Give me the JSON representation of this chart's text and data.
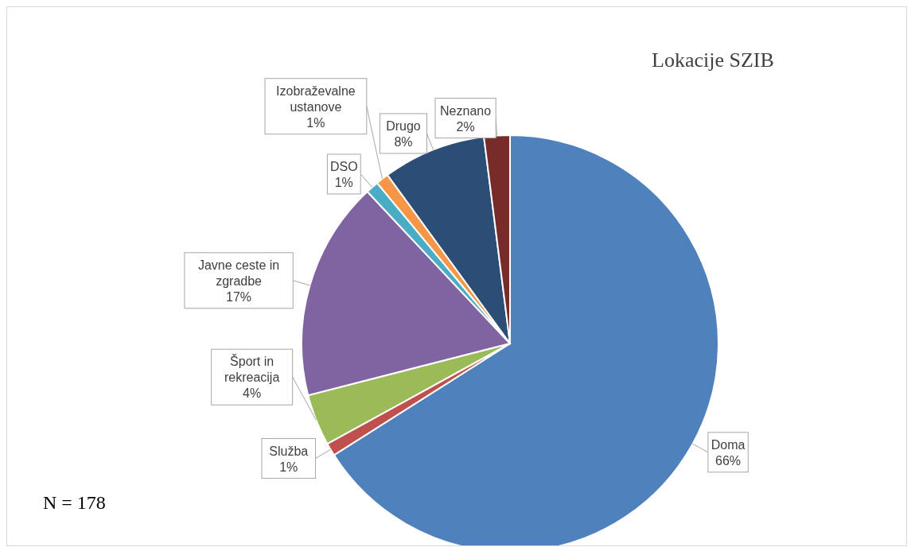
{
  "chart_data": {
    "type": "pie",
    "title": "Lokacije SZIB",
    "categories": [
      "Doma",
      "Služba",
      "Šport in rekreacija",
      "Javne ceste in zgradbe",
      "DSO",
      "Izobraževalne ustanove",
      "Drugo",
      "Neznano"
    ],
    "values": [
      66,
      1,
      4,
      17,
      1,
      1,
      8,
      2
    ],
    "colors": [
      "#4f81bd",
      "#c0504d",
      "#9bbb59",
      "#8064a2",
      "#4bacc6",
      "#f79646",
      "#2c4d75",
      "#772c2a"
    ],
    "value_labels": [
      "66%",
      "1%",
      "4%",
      "17%",
      "1%",
      "1%",
      "8%",
      "2%"
    ],
    "legend": false,
    "annotations": [
      "N = 178"
    ]
  }
}
